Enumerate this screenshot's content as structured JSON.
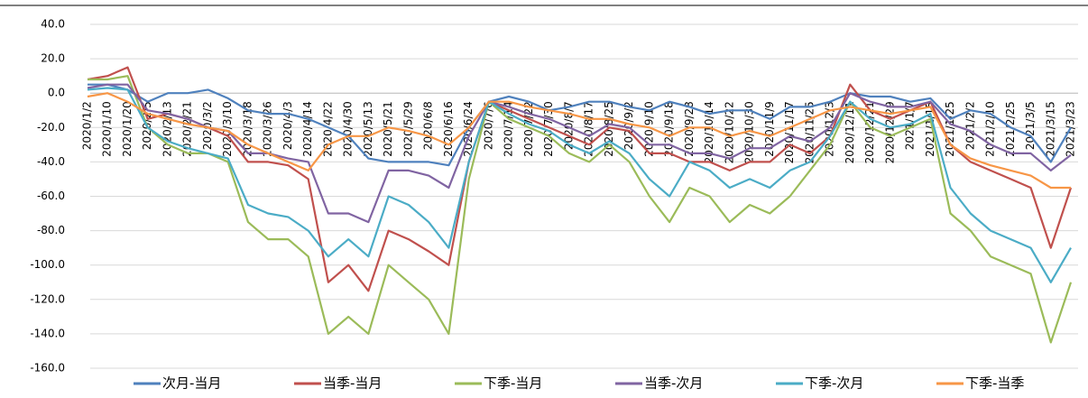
{
  "chart_data": {
    "type": "line",
    "categories": [
      "2020/1/2",
      "2020/1/10",
      "2020/1/20",
      "2020/2/5",
      "2020/2/13",
      "2020/2/21",
      "2020/3/2",
      "2020/3/10",
      "2020/3/18",
      "2020/3/26",
      "2020/4/3",
      "2020/4/14",
      "2020/4/22",
      "2020/4/30",
      "2020/5/13",
      "2020/5/21",
      "2020/5/29",
      "2020/6/8",
      "2020/6/16",
      "2020/6/24",
      "2020/7/6",
      "2020/7/14",
      "2020/7/22",
      "2020/7/30",
      "2020/8/7",
      "2020/8/17",
      "2020/8/25",
      "2020/9/2",
      "2020/9/10",
      "2020/9/18",
      "2020/9/28",
      "2020/10/14",
      "2020/10/22",
      "2020/10/30",
      "2020/11/9",
      "2020/11/17",
      "2020/11/25",
      "2020/12/3",
      "2020/12/11",
      "2020/12/21",
      "2020/12/29",
      "2021/1/7",
      "2021/1/15",
      "2021/1/25",
      "2021/2/2",
      "2021/2/10",
      "2021/2/25",
      "2021/3/5",
      "2021/3/15",
      "2021/3/23"
    ],
    "series": [
      {
        "name": "次月-当月",
        "color": "#4f81bd",
        "values": [
          5,
          5,
          2,
          -5,
          0,
          0,
          2,
          -3,
          -10,
          -12,
          -12,
          -15,
          -20,
          -25,
          -38,
          -40,
          -40,
          -40,
          -42,
          -20,
          -5,
          -2,
          -5,
          -10,
          -8,
          -5,
          -5,
          -8,
          -10,
          -5,
          -8,
          -12,
          -10,
          -10,
          -15,
          -8,
          -8,
          -5,
          0,
          -2,
          -2,
          -5,
          -3,
          -15,
          -10,
          -12,
          -20,
          -25,
          -40,
          -20
        ]
      },
      {
        "name": "当季-当月",
        "color": "#c0504d",
        "values": [
          8,
          10,
          15,
          -15,
          -12,
          -15,
          -20,
          -25,
          -40,
          -40,
          -42,
          -50,
          -110,
          -100,
          -115,
          -80,
          -85,
          -92,
          -100,
          -40,
          -5,
          -10,
          -15,
          -20,
          -25,
          -30,
          -20,
          -22,
          -35,
          -35,
          -40,
          -40,
          -45,
          -40,
          -40,
          -30,
          -35,
          -25,
          5,
          -10,
          -15,
          -10,
          -5,
          -30,
          -40,
          -45,
          -50,
          -55,
          -90,
          -55
        ]
      },
      {
        "name": "下季-当月",
        "color": "#9bbb59",
        "values": [
          8,
          8,
          10,
          -20,
          -30,
          -35,
          -35,
          -40,
          -75,
          -85,
          -85,
          -95,
          -140,
          -130,
          -140,
          -100,
          -110,
          -120,
          -140,
          -50,
          -5,
          -15,
          -20,
          -25,
          -35,
          -40,
          -30,
          -40,
          -60,
          -75,
          -55,
          -60,
          -75,
          -65,
          -70,
          -60,
          -45,
          -30,
          -5,
          -20,
          -25,
          -20,
          -15,
          -70,
          -80,
          -95,
          -100,
          -105,
          -145,
          -110
        ]
      },
      {
        "name": "当季-次月",
        "color": "#8064a2",
        "values": [
          3,
          5,
          5,
          -10,
          -12,
          -15,
          -20,
          -22,
          -35,
          -35,
          -38,
          -40,
          -70,
          -70,
          -75,
          -45,
          -45,
          -48,
          -55,
          -25,
          -5,
          -8,
          -12,
          -15,
          -20,
          -25,
          -18,
          -20,
          -30,
          -30,
          -35,
          -35,
          -38,
          -32,
          -32,
          -25,
          -28,
          -20,
          0,
          -5,
          -8,
          -8,
          -5,
          -18,
          -22,
          -30,
          -35,
          -35,
          -45,
          -36
        ]
      },
      {
        "name": "下季-次月",
        "color": "#4bacc6",
        "values": [
          2,
          3,
          2,
          -20,
          -28,
          -32,
          -35,
          -38,
          -65,
          -70,
          -72,
          -80,
          -95,
          -85,
          -95,
          -60,
          -65,
          -75,
          -90,
          -40,
          -5,
          -12,
          -18,
          -22,
          -30,
          -35,
          -28,
          -35,
          -50,
          -60,
          -40,
          -45,
          -55,
          -50,
          -55,
          -45,
          -40,
          -25,
          -5,
          -15,
          -20,
          -18,
          -12,
          -55,
          -70,
          -80,
          -85,
          -90,
          -110,
          -90
        ]
      },
      {
        "name": "下季-当季",
        "color": "#f79646",
        "values": [
          -2,
          0,
          -5,
          -12,
          -15,
          -18,
          -20,
          -22,
          -30,
          -35,
          -40,
          -45,
          -30,
          -25,
          -25,
          -20,
          -22,
          -25,
          -30,
          -20,
          -5,
          -5,
          -8,
          -10,
          -12,
          -15,
          -15,
          -18,
          -20,
          -25,
          -20,
          -20,
          -25,
          -22,
          -25,
          -20,
          -15,
          -10,
          -8,
          -10,
          -12,
          -10,
          -8,
          -30,
          -38,
          -42,
          -45,
          -48,
          -55,
          -55
        ]
      }
    ],
    "ylim": [
      -160,
      40
    ],
    "yticks": [
      {
        "value": -160,
        "label": "-160.0"
      },
      {
        "value": -140,
        "label": "-140.0"
      },
      {
        "value": -120,
        "label": "-120.0"
      },
      {
        "value": -100,
        "label": "-100.0"
      },
      {
        "value": -80,
        "label": "-80.0"
      },
      {
        "value": -60,
        "label": "-60.0"
      },
      {
        "value": -40,
        "label": "-40.0"
      },
      {
        "value": -20,
        "label": "-20.0"
      },
      {
        "value": 0,
        "label": "0.0"
      },
      {
        "value": 20,
        "label": "20.0"
      },
      {
        "value": 40,
        "label": "40.0"
      }
    ],
    "grid": true
  }
}
